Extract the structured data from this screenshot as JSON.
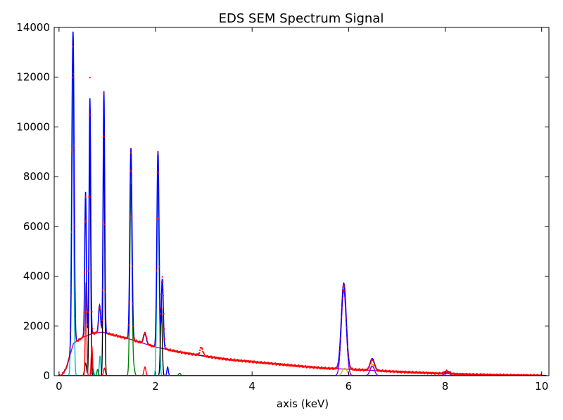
{
  "chart_data": {
    "type": "line",
    "title": "EDS SEM Spectrum Signal",
    "xlabel": "axis (keV)",
    "ylabel": "",
    "xlim": [
      -0.1,
      10.15
    ],
    "ylim": [
      0,
      14000
    ],
    "xticks": [
      "0",
      "2",
      "4",
      "6",
      "8",
      "10"
    ],
    "yticks": [
      "0",
      "2000",
      "4000",
      "6000",
      "8000",
      "10000",
      "12000",
      "14000"
    ],
    "grid": false,
    "legend": "none",
    "background": {
      "color": "#bf00bf",
      "points": [
        [
          0.15,
          300
        ],
        [
          0.3,
          1300
        ],
        [
          0.5,
          1550
        ],
        [
          0.7,
          1700
        ],
        [
          0.9,
          1750
        ],
        [
          1.0,
          1700
        ],
        [
          1.5,
          1450
        ],
        [
          2.0,
          1150
        ],
        [
          2.5,
          950
        ],
        [
          3.0,
          790
        ],
        [
          3.5,
          650
        ],
        [
          4.0,
          560
        ],
        [
          4.5,
          470
        ],
        [
          5.0,
          380
        ],
        [
          5.5,
          300
        ],
        [
          6.0,
          260
        ],
        [
          6.5,
          210
        ],
        [
          7.0,
          160
        ],
        [
          7.5,
          120
        ],
        [
          8.0,
          80
        ],
        [
          8.5,
          50
        ],
        [
          9.0,
          30
        ],
        [
          9.5,
          15
        ],
        [
          10.0,
          8
        ]
      ]
    },
    "components": [
      {
        "color": "#00bfbf",
        "peaks": [
          [
            0.28,
            12600,
            0.022
          ],
          [
            0.85,
            800,
            0.015
          ],
          [
            2.05,
            7900,
            0.022
          ],
          [
            0.7,
            300,
            0.02
          ]
        ]
      },
      {
        "color": "#000000",
        "peaks": [
          [
            0.64,
            9400,
            0.016
          ],
          [
            0.93,
            9650,
            0.016
          ],
          [
            2.12,
            2800,
            0.018
          ],
          [
            0.55,
            500,
            0.02
          ]
        ]
      },
      {
        "color": "#ff0000",
        "peaks": [
          [
            0.56,
            3750,
            0.014
          ],
          [
            0.68,
            1200,
            0.014
          ],
          [
            0.94,
            300,
            0.018
          ],
          [
            1.78,
            350,
            0.02
          ]
        ]
      },
      {
        "color": "#008000",
        "peaks": [
          [
            1.49,
            7700,
            0.022
          ],
          [
            0.8,
            250,
            0.015
          ],
          [
            2.5,
            100,
            0.02
          ],
          [
            1.55,
            300,
            0.02
          ]
        ]
      },
      {
        "color": "#0000ff",
        "peaks": [
          [
            2.25,
            350,
            0.015
          ]
        ]
      },
      {
        "color": "#bfbf00",
        "peaks": [
          [
            6.49,
            450,
            0.045
          ],
          [
            5.92,
            300,
            0.05
          ]
        ]
      },
      {
        "color": "#7f00ff",
        "peaks": [
          [
            5.9,
            3450,
            0.05
          ],
          [
            6.49,
            380,
            0.045
          ],
          [
            8.04,
            120,
            0.05
          ]
        ]
      }
    ],
    "series": [
      {
        "color": "#0000ff",
        "style": "line",
        "peaks": [
          [
            0.29,
            12600,
            0.022
          ],
          [
            0.55,
            5800,
            0.016
          ],
          [
            0.64,
            9500,
            0.016
          ],
          [
            0.84,
            1100,
            0.02
          ],
          [
            0.93,
            9700,
            0.016
          ],
          [
            1.49,
            7700,
            0.022
          ],
          [
            1.78,
            400,
            0.03
          ],
          [
            2.05,
            7900,
            0.022
          ],
          [
            2.14,
            2800,
            0.02
          ],
          [
            5.9,
            3450,
            0.05
          ],
          [
            6.49,
            480,
            0.045
          ],
          [
            8.04,
            110,
            0.05
          ]
        ]
      },
      {
        "color": "#ff0000",
        "style": "dots",
        "peaks": [
          [
            0.29,
            12000,
            0.022
          ],
          [
            0.55,
            5600,
            0.016
          ],
          [
            0.64,
            10300,
            0.018
          ],
          [
            0.84,
            1100,
            0.02
          ],
          [
            0.93,
            9600,
            0.016
          ],
          [
            1.49,
            7500,
            0.022
          ],
          [
            1.78,
            450,
            0.03
          ],
          [
            2.05,
            7800,
            0.022
          ],
          [
            2.14,
            2900,
            0.025
          ],
          [
            2.95,
            330,
            0.03
          ],
          [
            5.9,
            3400,
            0.05
          ],
          [
            6.49,
            420,
            0.045
          ],
          [
            8.04,
            100,
            0.05
          ]
        ]
      }
    ]
  }
}
